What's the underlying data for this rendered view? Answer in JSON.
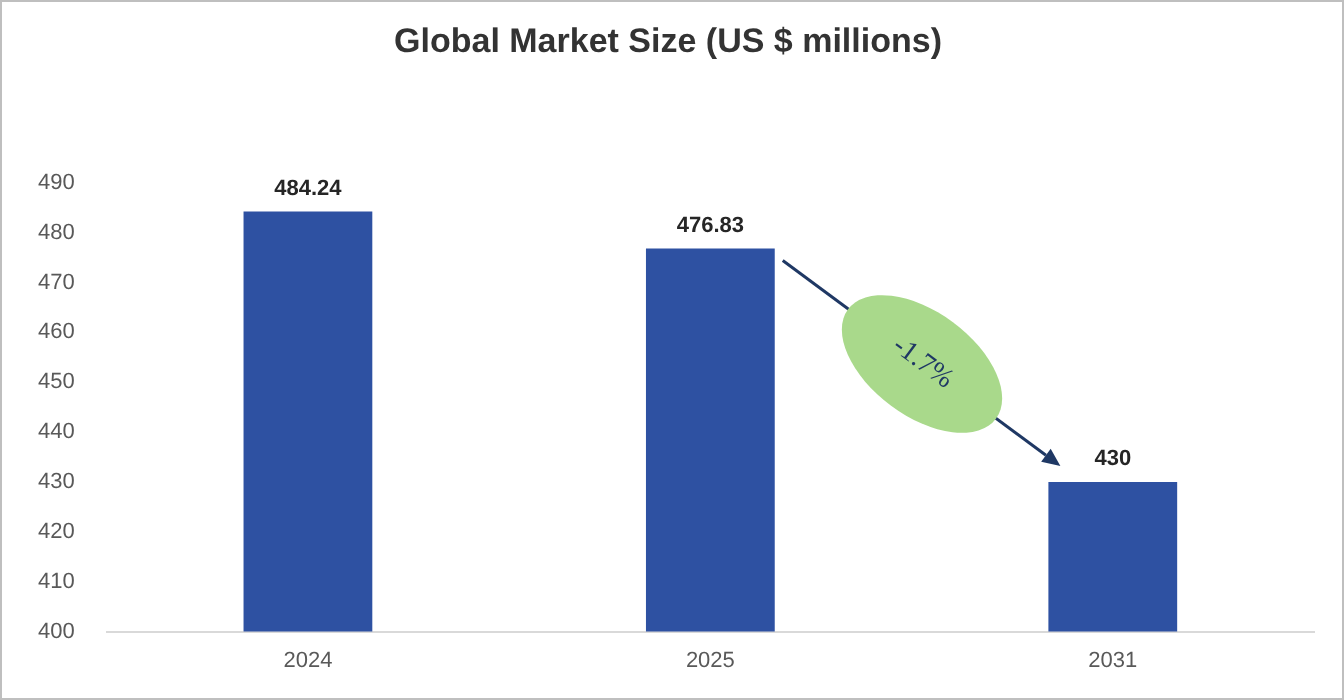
{
  "chart_data": {
    "type": "bar",
    "title": "Global Market Size (US $ millions)",
    "categories": [
      "2024",
      "2025",
      "2031"
    ],
    "values": [
      484.24,
      476.83,
      430
    ],
    "color": "#2e51a2",
    "ylim": [
      400,
      490
    ],
    "yticks": [
      400,
      410,
      420,
      430,
      440,
      450,
      460,
      470,
      480,
      490
    ],
    "grid": false,
    "legend": false,
    "data_labels": true,
    "annotations": [
      "-1.7%"
    ]
  }
}
